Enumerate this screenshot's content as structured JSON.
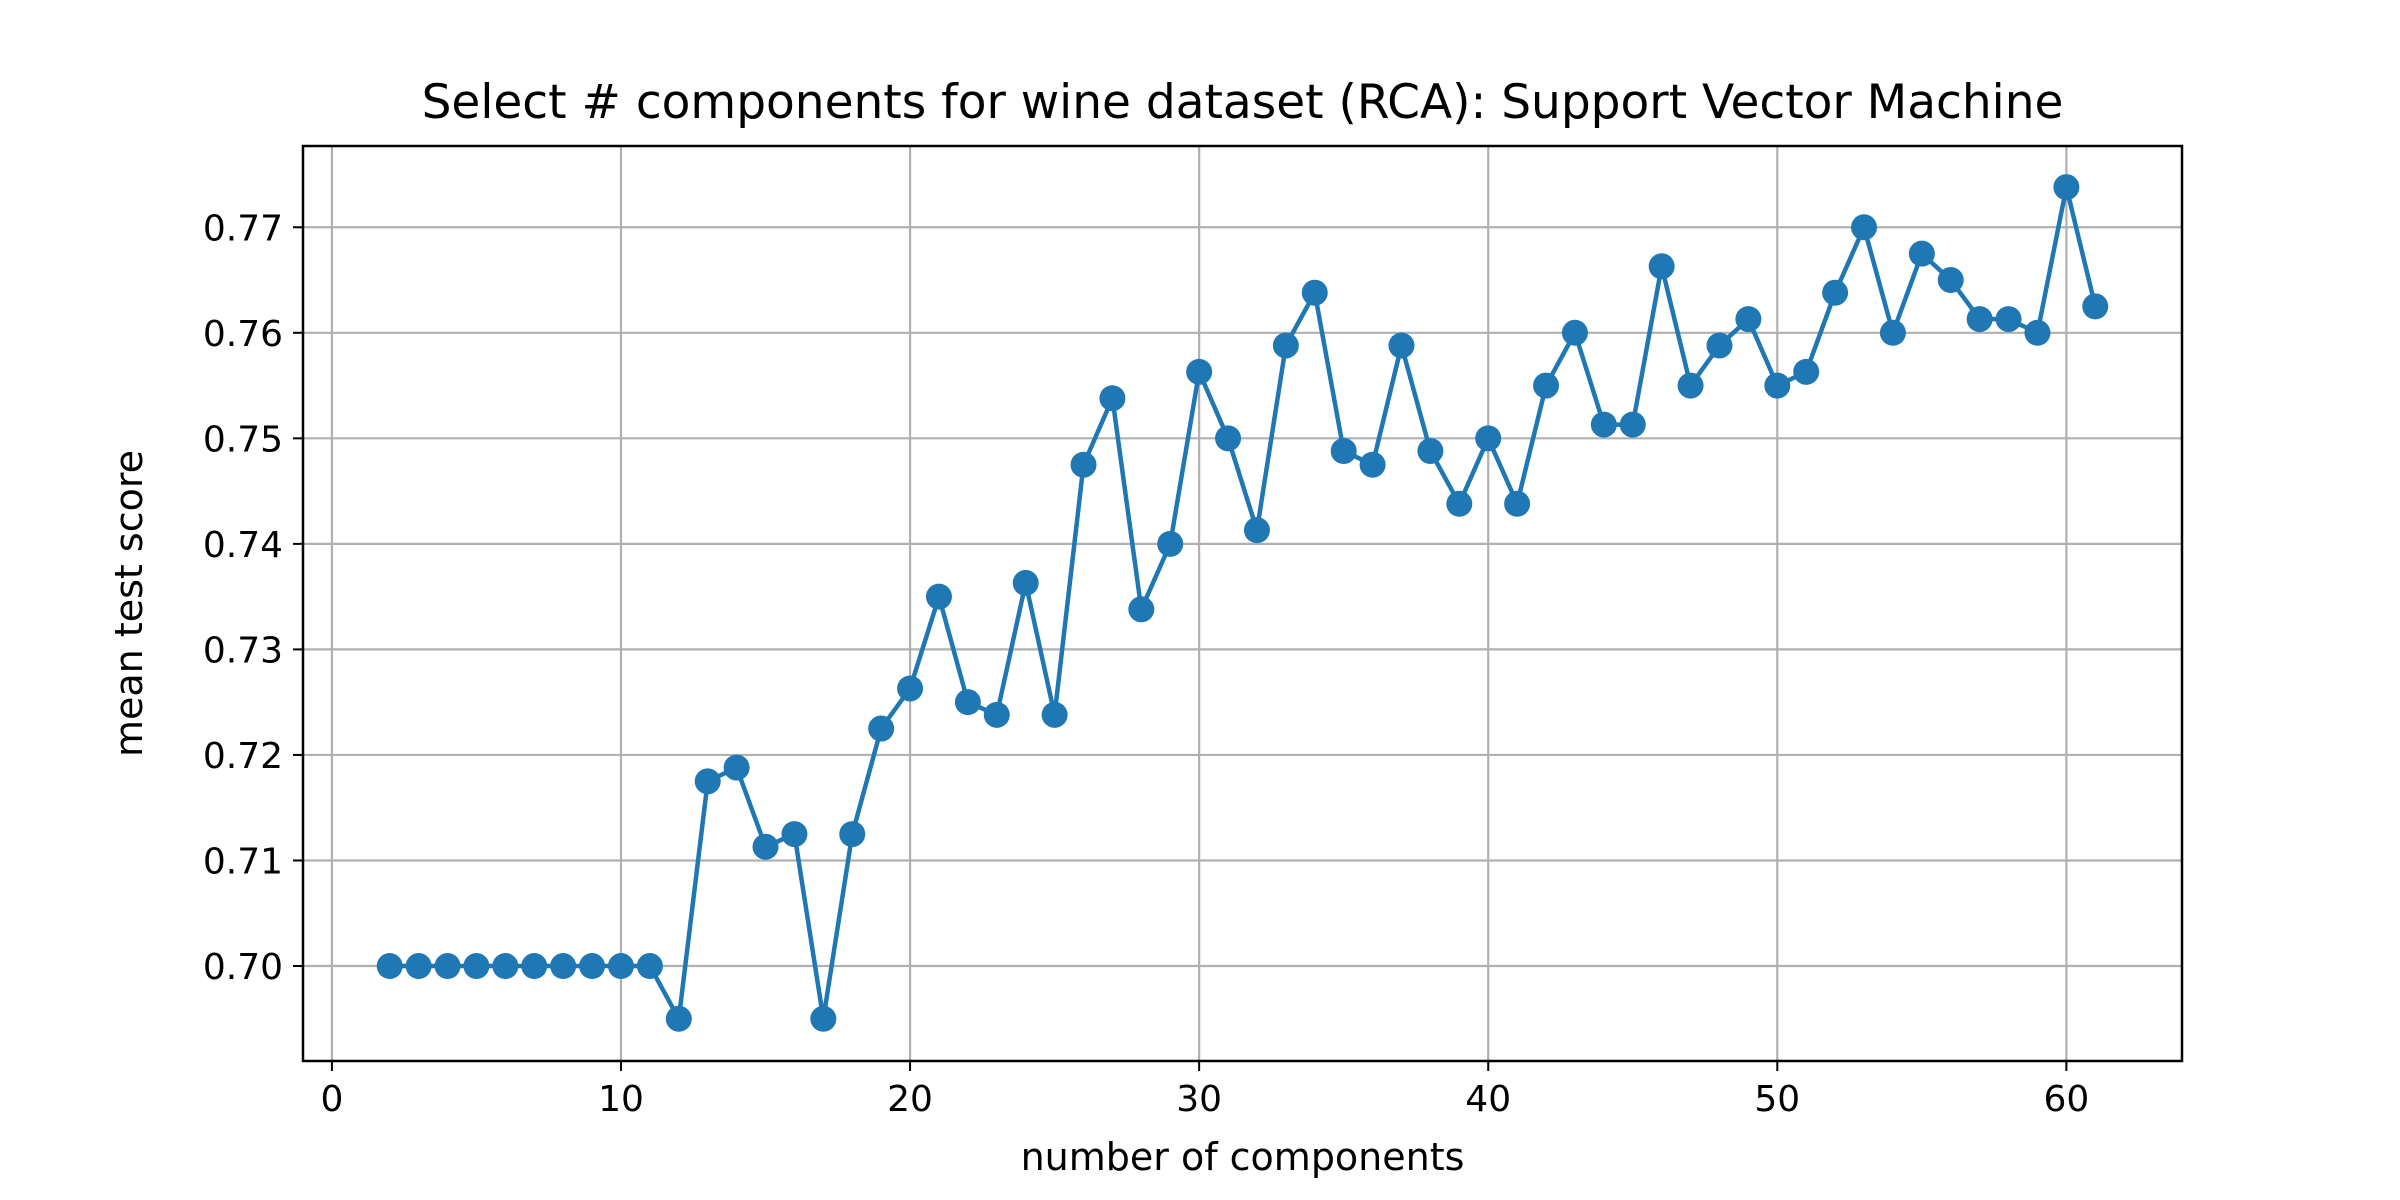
{
  "chart_data": {
    "type": "line",
    "title": "Select # components for wine dataset (RCA): Support Vector Machine",
    "xlabel": "number of components",
    "ylabel": "mean test score",
    "xlim": [
      -1,
      64
    ],
    "ylim": [
      0.691,
      0.7777
    ],
    "xticks": [
      0,
      10,
      20,
      30,
      40,
      50,
      60
    ],
    "xtick_labels": [
      "0",
      "10",
      "20",
      "30",
      "40",
      "50",
      "60"
    ],
    "yticks": [
      0.7,
      0.71,
      0.72,
      0.73,
      0.74,
      0.75,
      0.76,
      0.77
    ],
    "ytick_labels": [
      "0.70",
      "0.71",
      "0.72",
      "0.73",
      "0.74",
      "0.75",
      "0.76",
      "0.77"
    ],
    "grid": true,
    "legend": false,
    "marker": "circle",
    "series": [
      {
        "color": "#1f77b4",
        "x": [
          2,
          3,
          4,
          5,
          6,
          7,
          8,
          9,
          10,
          11,
          12,
          13,
          14,
          15,
          16,
          17,
          18,
          19,
          20,
          21,
          22,
          23,
          24,
          25,
          26,
          27,
          28,
          29,
          30,
          31,
          32,
          33,
          34,
          35,
          36,
          37,
          38,
          39,
          40,
          41,
          42,
          43,
          44,
          45,
          46,
          47,
          48,
          49,
          50,
          51,
          52,
          53,
          54,
          55,
          56,
          57,
          58,
          59,
          60,
          61
        ],
        "y": [
          0.7,
          0.7,
          0.7,
          0.7,
          0.7,
          0.7,
          0.7,
          0.7,
          0.7,
          0.7,
          0.695,
          0.7175,
          0.7188,
          0.7113,
          0.7125,
          0.695,
          0.7125,
          0.7225,
          0.7263,
          0.735,
          0.725,
          0.7238,
          0.7363,
          0.7238,
          0.7475,
          0.7538,
          0.7338,
          0.74,
          0.7563,
          0.75,
          0.7413,
          0.7588,
          0.7638,
          0.7488,
          0.7475,
          0.7588,
          0.7488,
          0.7438,
          0.75,
          0.7438,
          0.755,
          0.76,
          0.7513,
          0.7513,
          0.7663,
          0.755,
          0.7588,
          0.7613,
          0.755,
          0.7563,
          0.7638,
          0.77,
          0.76,
          0.7675,
          0.765,
          0.7613,
          0.7613,
          0.76,
          0.7738,
          0.7625
        ]
      }
    ]
  }
}
